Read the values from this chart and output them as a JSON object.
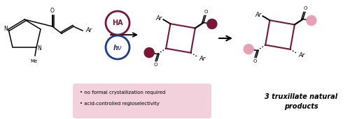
{
  "bg_color": "#ffffff",
  "fig_width": 5.0,
  "fig_height": 1.71,
  "dpi": 100,
  "ha_circle_color": "#7b1535",
  "hv_circle_color": "#1a3a8c",
  "cyclobutane_color": "#7b1535",
  "dark_dot_color": "#7b1535",
  "light_dot_color": "#e8a0b4",
  "box_bg_color": "#f2d0dc",
  "box_text1": "no formal crystallization required",
  "box_text2": "acid-controlled regioselectivity",
  "result_text1": "3 truxillate natural",
  "result_text2": "products",
  "arrow_color": "#000000"
}
